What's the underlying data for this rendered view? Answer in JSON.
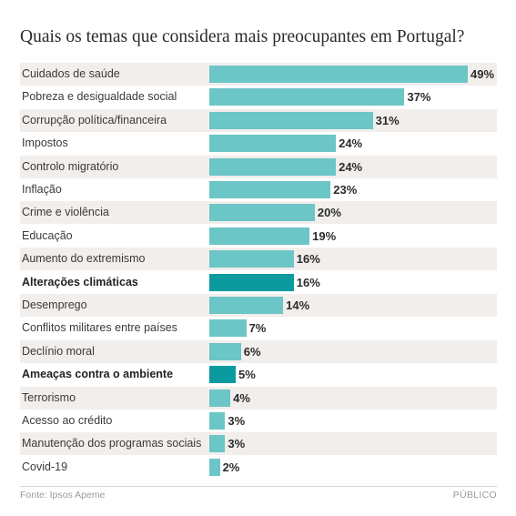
{
  "chart_data": {
    "type": "bar",
    "orientation": "horizontal",
    "title": "Quais os temas que considera mais preocupantes em Portugal?",
    "categories": [
      "Cuidados de saúde",
      "Pobreza e desigualdade social",
      "Corrupção política/financeira",
      "Impostos",
      "Controlo migratório",
      "Inflação",
      "Crime e violência",
      "Educação",
      "Aumento do extremismo",
      "Alterações climáticas",
      "Desemprego",
      "Conflitos militares entre países",
      "Declínio moral",
      "Ameaças contra o ambiente",
      "Terrorismo",
      "Acesso ao crédito",
      "Manutenção dos programas sociais",
      "Covid-19"
    ],
    "values": [
      49,
      37,
      31,
      24,
      24,
      23,
      20,
      19,
      16,
      16,
      14,
      7,
      6,
      5,
      4,
      3,
      3,
      2
    ],
    "value_labels": [
      "49%",
      "37%",
      "31%",
      "24%",
      "24%",
      "23%",
      "20%",
      "19%",
      "16%",
      "16%",
      "14%",
      "7%",
      "6%",
      "5%",
      "4%",
      "3%",
      "3%",
      "2%"
    ],
    "highlighted": [
      "Alterações climáticas",
      "Ameaças contra o ambiente"
    ],
    "xlim": [
      0,
      49
    ],
    "unit": "%",
    "colors": {
      "bar": "#6cc5c7",
      "highlight": "#0b9a9e",
      "row_shade": "#f1eeec"
    }
  },
  "footer": {
    "source": "Fonte: Ipsos Apeme",
    "publisher": "PÚBLICO"
  }
}
